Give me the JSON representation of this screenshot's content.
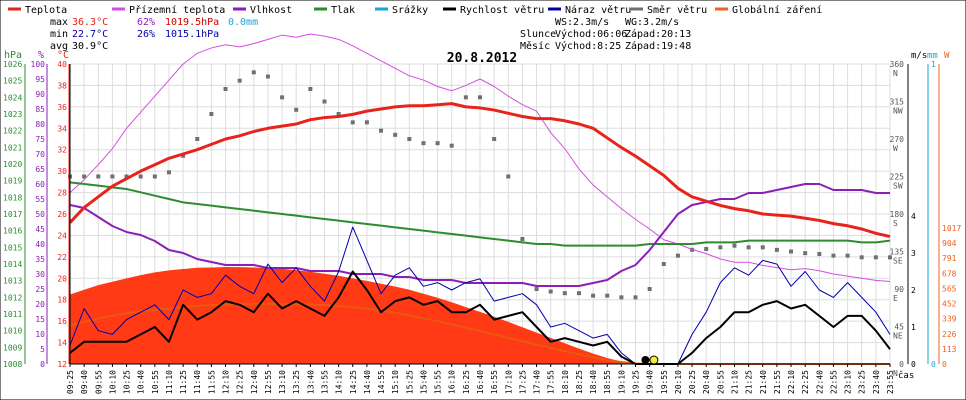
{
  "chart_data": {
    "type": "line",
    "title": "20.8.2012",
    "legend": [
      {
        "name": "Teplota",
        "color": "#e8231c"
      },
      {
        "name": "Přízemní teplota",
        "color": "#d44fe0"
      },
      {
        "name": "Vlhkost",
        "color": "#8a1fb5"
      },
      {
        "name": "Tlak",
        "color": "#2e8b2e"
      },
      {
        "name": "Srážky",
        "color": "#1aa7d6"
      },
      {
        "name": "Rychlost větru",
        "color": "#000000"
      },
      {
        "name": "Náraz větru",
        "color": "#0000aa"
      },
      {
        "name": "Směr větru",
        "color": "#707070"
      },
      {
        "name": "Globální záření",
        "color": "#f06020"
      }
    ],
    "stats": {
      "max_label": "max",
      "max_temp": "36.3°C",
      "max_hum": "62%",
      "max_press": "1019.5hPa",
      "precip": "0.0mm",
      "min_label": "min",
      "min_temp": "22.7°C",
      "min_hum": "26%",
      "min_press": "1015.1hPa",
      "avg_label": "avg",
      "avg_temp": "30.9°C",
      "ws": "WS:2.3m/s",
      "wg": "WG:3.2m/s",
      "sun_label": "Slunce",
      "sun_rise": "Východ:06:06",
      "sun_set": "Západ:20:13",
      "moon_label": "Měsíc",
      "moon_rise": "Východ:8:25",
      "moon_set": "Západ:19:48"
    },
    "x_label": "čas",
    "x_ticks": [
      "09:25",
      "09:40",
      "09:55",
      "10:10",
      "10:25",
      "10:40",
      "10:55",
      "11:10",
      "11:25",
      "11:40",
      "11:55",
      "12:10",
      "12:25",
      "12:40",
      "12:55",
      "13:10",
      "13:25",
      "13:40",
      "13:55",
      "14:10",
      "14:25",
      "14:40",
      "14:55",
      "15:10",
      "15:25",
      "15:40",
      "15:55",
      "16:10",
      "16:25",
      "16:40",
      "16:55",
      "17:10",
      "17:25",
      "17:40",
      "17:55",
      "18:10",
      "18:25",
      "18:40",
      "18:55",
      "19:10",
      "19:25",
      "19:40",
      "19:55",
      "20:10",
      "20:25",
      "20:40",
      "20:55",
      "21:10",
      "21:25",
      "21:40",
      "21:55",
      "22:10",
      "22:25",
      "22:40",
      "22:55",
      "23:10",
      "23:25",
      "23:40",
      "23:55"
    ],
    "axis_hpa": {
      "unit": "hPa",
      "ticks": [
        "1008",
        "1009",
        "1010",
        "1011",
        "1012",
        "1013",
        "1014",
        "1015",
        "1016",
        "1017",
        "1018",
        "1019",
        "1020",
        "1021",
        "1022",
        "1023",
        "1024",
        "1025",
        "1026"
      ]
    },
    "axis_pct": {
      "unit": "%",
      "ticks": [
        "0",
        "5",
        "10",
        "15",
        "20",
        "25",
        "30",
        "35",
        "40",
        "45",
        "50",
        "55",
        "60",
        "65",
        "70",
        "75",
        "80",
        "85",
        "90",
        "95",
        "100"
      ]
    },
    "axis_c": {
      "unit": "°C",
      "ticks": [
        "12",
        "14",
        "16",
        "18",
        "20",
        "22",
        "24",
        "26",
        "28",
        "30",
        "32",
        "34",
        "36",
        "38",
        "40"
      ]
    },
    "axis_dir": {
      "labels": [
        {
          "v": "0",
          "d": "N"
        },
        {
          "v": "45",
          "d": "NE"
        },
        {
          "v": "90",
          "d": "E"
        },
        {
          "v": "135",
          "d": "SE"
        },
        {
          "v": "180",
          "d": "S"
        },
        {
          "v": "225",
          "d": "SW"
        },
        {
          "v": "270",
          "d": "W"
        },
        {
          "v": "315",
          "d": "NW"
        },
        {
          "v": "360",
          "d": "N"
        }
      ]
    },
    "axis_ms": {
      "unit": "m/s",
      "ticks": [
        "0",
        "1",
        "2",
        "3",
        "4"
      ]
    },
    "axis_mm": {
      "unit": "mm",
      "ticks": [
        "0",
        "1"
      ]
    },
    "axis_w": {
      "unit": "W",
      "ticks": [
        "0",
        "113",
        "226",
        "339",
        "452",
        "565",
        "678",
        "791",
        "904",
        "1017"
      ]
    },
    "temp_x": [
      0,
      1,
      2,
      3,
      4,
      5,
      6,
      7,
      8,
      9,
      10,
      11,
      12,
      13,
      14,
      15,
      16,
      17,
      18,
      19,
      20,
      21,
      22,
      23,
      24,
      25,
      26,
      27,
      28,
      29,
      30,
      31,
      32,
      33,
      34,
      35,
      36,
      37,
      38,
      39,
      40,
      41,
      42,
      43,
      44,
      45,
      46,
      47,
      48,
      49,
      50,
      51,
      52,
      53,
      54,
      55,
      56,
      57,
      58
    ],
    "temp_y": [
      25.2,
      26.6,
      27.6,
      28.6,
      29.3,
      30.0,
      30.6,
      31.2,
      31.6,
      32.0,
      32.5,
      33.0,
      33.3,
      33.7,
      34.0,
      34.2,
      34.4,
      34.8,
      35.0,
      35.1,
      35.3,
      35.6,
      35.8,
      36.0,
      36.1,
      36.1,
      36.2,
      36.3,
      36.0,
      35.9,
      35.7,
      35.4,
      35.1,
      34.9,
      34.9,
      34.7,
      34.4,
      34.0,
      33.1,
      32.2,
      31.4,
      30.5,
      29.6,
      28.4,
      27.6,
      27.2,
      26.8,
      26.5,
      26.3,
      26.0,
      25.9,
      25.8,
      25.6,
      25.4,
      25.1,
      24.9,
      24.6,
      24.2,
      23.9
    ],
    "ground_temp_y": [
      28.0,
      29.2,
      30.6,
      32.1,
      34.0,
      35.5,
      37.0,
      38.5,
      40.0,
      41.0,
      41.5,
      41.8,
      41.6,
      41.9,
      42.3,
      42.7,
      42.5,
      42.8,
      42.6,
      42.3,
      41.7,
      41.0,
      40.3,
      39.6,
      38.9,
      38.5,
      37.9,
      37.5,
      38.0,
      38.6,
      37.9,
      37.0,
      36.2,
      35.6,
      33.6,
      32.1,
      30.2,
      28.7,
      27.6,
      26.5,
      25.5,
      24.6,
      23.6,
      23.2,
      22.7,
      22.3,
      21.8,
      21.5,
      21.5,
      21.2,
      21.0,
      20.8,
      20.9,
      20.7,
      20.4,
      20.2,
      20.0,
      19.8,
      19.7
    ],
    "humidity_y": [
      53,
      52,
      49,
      46,
      44,
      43,
      41,
      38,
      37,
      35,
      34,
      33,
      33,
      33,
      32,
      32,
      32,
      31,
      31,
      31,
      30,
      30,
      30,
      29,
      29,
      28,
      28,
      28,
      27,
      27,
      27,
      27,
      27,
      26,
      26,
      26,
      26,
      27,
      28,
      31,
      33,
      38,
      44,
      50,
      53,
      54,
      55,
      55,
      57,
      57,
      58,
      59,
      60,
      60,
      58,
      58,
      58,
      57,
      57
    ],
    "pressure_y": [
      1018.9,
      1018.8,
      1018.7,
      1018.6,
      1018.5,
      1018.3,
      1018.1,
      1017.9,
      1017.7,
      1017.6,
      1017.5,
      1017.4,
      1017.3,
      1017.2,
      1017.1,
      1017.0,
      1016.9,
      1016.8,
      1016.7,
      1016.6,
      1016.5,
      1016.4,
      1016.3,
      1016.2,
      1016.1,
      1016.0,
      1015.9,
      1015.8,
      1015.7,
      1015.6,
      1015.5,
      1015.4,
      1015.3,
      1015.2,
      1015.2,
      1015.1,
      1015.1,
      1015.1,
      1015.1,
      1015.1,
      1015.1,
      1015.2,
      1015.2,
      1015.2,
      1015.2,
      1015.3,
      1015.3,
      1015.3,
      1015.4,
      1015.4,
      1015.4,
      1015.4,
      1015.4,
      1015.4,
      1015.4,
      1015.4,
      1015.3,
      1015.3,
      1015.4
    ],
    "wind_y": [
      0.3,
      0.6,
      0.6,
      0.6,
      0.6,
      0.8,
      1.0,
      0.6,
      1.6,
      1.2,
      1.4,
      1.7,
      1.6,
      1.4,
      1.9,
      1.5,
      1.7,
      1.5,
      1.3,
      1.8,
      2.5,
      2.0,
      1.4,
      1.7,
      1.8,
      1.6,
      1.7,
      1.4,
      1.4,
      1.6,
      1.2,
      1.3,
      1.4,
      1.0,
      0.6,
      0.7,
      0.6,
      0.5,
      0.6,
      0.2,
      0.0,
      0.0,
      0.0,
      0.0,
      0.3,
      0.7,
      1.0,
      1.4,
      1.4,
      1.6,
      1.7,
      1.5,
      1.6,
      1.3,
      1.0,
      1.3,
      1.3,
      0.9,
      0.4
    ],
    "gust_y": [
      0.5,
      1.5,
      0.9,
      0.8,
      1.2,
      1.4,
      1.6,
      1.2,
      2.0,
      1.8,
      1.9,
      2.4,
      2.1,
      1.9,
      2.7,
      2.2,
      2.6,
      2.1,
      1.7,
      2.5,
      3.7,
      2.8,
      1.9,
      2.4,
      2.6,
      2.1,
      2.2,
      2.0,
      2.2,
      2.3,
      1.7,
      1.8,
      1.9,
      1.6,
      1.0,
      1.1,
      0.9,
      0.7,
      0.8,
      0.3,
      0.0,
      0.0,
      0.0,
      0.0,
      0.8,
      1.4,
      2.2,
      2.6,
      2.4,
      2.8,
      2.7,
      2.1,
      2.5,
      2.0,
      1.8,
      2.2,
      1.8,
      1.4,
      0.8
    ],
    "dir_y": [
      225,
      225,
      225,
      225,
      225,
      225,
      225,
      230,
      250,
      270,
      300,
      330,
      340,
      350,
      345,
      320,
      305,
      330,
      315,
      300,
      290,
      290,
      280,
      275,
      270,
      265,
      265,
      262,
      320,
      320,
      270,
      225,
      150,
      90,
      87,
      85,
      85,
      82,
      82,
      80,
      80,
      90,
      120,
      130,
      137,
      138,
      140,
      142,
      140,
      140,
      137,
      135,
      133,
      132,
      130,
      130,
      128,
      128,
      128
    ],
    "radiation_y": [
      520,
      555,
      590,
      615,
      640,
      665,
      685,
      700,
      710,
      720,
      722,
      725,
      724,
      722,
      718,
      712,
      702,
      690,
      675,
      660,
      640,
      622,
      600,
      580,
      555,
      525,
      495,
      462,
      425,
      390,
      353,
      315,
      275,
      235,
      195,
      155,
      115,
      78,
      45,
      18,
      3,
      0,
      0,
      0,
      0,
      0,
      0,
      0,
      0,
      0,
      0,
      0,
      0,
      0,
      0,
      0,
      0,
      0,
      0
    ],
    "radiation_env_y": [
      290,
      315,
      340,
      360,
      380,
      395,
      405,
      415,
      425,
      435,
      440,
      445,
      448,
      450,
      450,
      449,
      447,
      445,
      440,
      434,
      425,
      414,
      400,
      383,
      364,
      343,
      320,
      296,
      272,
      248,
      222,
      196,
      170,
      145,
      120,
      95,
      72,
      50,
      30,
      14,
      4,
      0,
      0,
      0,
      0,
      0,
      0,
      0,
      0,
      0,
      0,
      0,
      0,
      0,
      0,
      0,
      0,
      0,
      0
    ],
    "sunset_marker_x": 40.7,
    "moonset_marker_x": 41.3
  }
}
